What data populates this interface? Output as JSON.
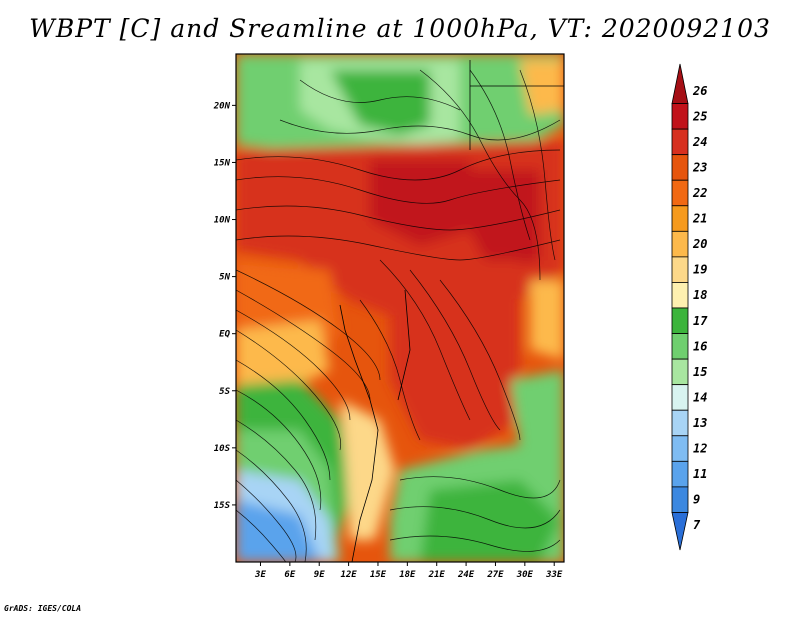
{
  "title": "WBPT [C] and Sreamline at 1000hPa, VT: 2020092103",
  "credit": "GrADS: IGES/COLA",
  "map": {
    "x_ticks": [
      "3E",
      "6E",
      "9E",
      "12E",
      "15E",
      "18E",
      "21E",
      "24E",
      "27E",
      "30E",
      "33E"
    ],
    "x_tick_values": [
      3,
      6,
      9,
      12,
      15,
      18,
      21,
      24,
      27,
      30,
      33
    ],
    "y_ticks": [
      "20N",
      "15N",
      "10N",
      "5N",
      "EQ",
      "5S",
      "10S",
      "15S"
    ],
    "y_tick_values": [
      20,
      15,
      10,
      5,
      0,
      -5,
      -10,
      -15
    ],
    "lon_range": [
      0.5,
      34
    ],
    "lat_range": [
      -20,
      24.5
    ]
  },
  "colorbar": {
    "labels": [
      "26",
      "25",
      "24",
      "23",
      "22",
      "21",
      "20",
      "19",
      "18",
      "17",
      "16",
      "15",
      "14",
      "13",
      "12",
      "11",
      "9",
      "7"
    ],
    "colors": [
      "#a50f15",
      "#c1121a",
      "#d7301f",
      "#e6550d",
      "#f16913",
      "#f69a1d",
      "#fdb94b",
      "#fdd889",
      "#fef0b0",
      "#3cb43c",
      "#6fcf6f",
      "#a8e6a0",
      "#d8f3f0",
      "#a8d4f5",
      "#7fbcf2",
      "#5aa3ec",
      "#3c88e0",
      "#2a6fd8"
    ]
  },
  "colors": {
    "warm_core": "#c1121a",
    "hot": "#d7301f",
    "orange": "#f16913",
    "light_orange": "#fdb94b",
    "cream": "#fef0b0",
    "green": "#3cb43c",
    "light_green": "#6fcf6f",
    "pale_green": "#a8e6a0",
    "pale_blue": "#a8d4f5",
    "blue": "#5aa3ec"
  }
}
